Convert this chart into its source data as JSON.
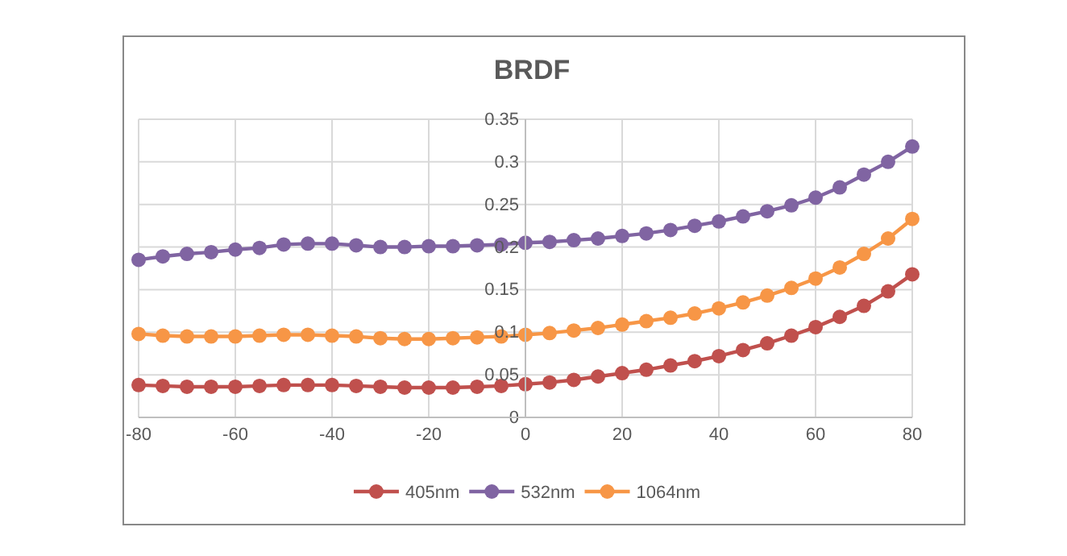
{
  "chart_data": {
    "type": "line",
    "title": "BRDF",
    "x": [
      -80,
      -75,
      -70,
      -65,
      -60,
      -55,
      -50,
      -45,
      -40,
      -35,
      -30,
      -25,
      -20,
      -15,
      -10,
      -5,
      0,
      5,
      10,
      15,
      20,
      25,
      30,
      35,
      40,
      45,
      50,
      55,
      60,
      65,
      70,
      75,
      80
    ],
    "series": [
      {
        "name": "405nm",
        "color": "#c0504d",
        "values": [
          0.038,
          0.037,
          0.036,
          0.036,
          0.036,
          0.037,
          0.038,
          0.038,
          0.038,
          0.037,
          0.036,
          0.035,
          0.035,
          0.035,
          0.036,
          0.037,
          0.039,
          0.041,
          0.044,
          0.048,
          0.052,
          0.056,
          0.061,
          0.066,
          0.072,
          0.079,
          0.087,
          0.096,
          0.106,
          0.118,
          0.131,
          0.148,
          0.168
        ]
      },
      {
        "name": "532nm",
        "color": "#8064a2",
        "values": [
          0.185,
          0.189,
          0.192,
          0.194,
          0.197,
          0.199,
          0.203,
          0.204,
          0.204,
          0.202,
          0.2,
          0.2,
          0.201,
          0.201,
          0.202,
          0.203,
          0.205,
          0.206,
          0.208,
          0.21,
          0.213,
          0.216,
          0.22,
          0.225,
          0.23,
          0.236,
          0.242,
          0.249,
          0.258,
          0.27,
          0.285,
          0.3,
          0.318
        ]
      },
      {
        "name": "1064nm",
        "color": "#f79646",
        "values": [
          0.098,
          0.096,
          0.095,
          0.095,
          0.095,
          0.096,
          0.097,
          0.097,
          0.096,
          0.095,
          0.093,
          0.092,
          0.092,
          0.093,
          0.094,
          0.095,
          0.097,
          0.099,
          0.102,
          0.105,
          0.109,
          0.113,
          0.117,
          0.122,
          0.128,
          0.135,
          0.143,
          0.152,
          0.163,
          0.176,
          0.192,
          0.21,
          0.233
        ]
      }
    ],
    "xlim": [
      -80,
      80
    ],
    "xticks": [
      -80,
      -60,
      -40,
      -20,
      0,
      20,
      40,
      60,
      80
    ],
    "ylim": [
      0,
      0.35
    ],
    "yticks": [
      0,
      0.05,
      0.1,
      0.15,
      0.2,
      0.25,
      0.3,
      0.35
    ],
    "grid": true,
    "legend": "bottom",
    "marker": "circle",
    "line_style": "solid"
  }
}
